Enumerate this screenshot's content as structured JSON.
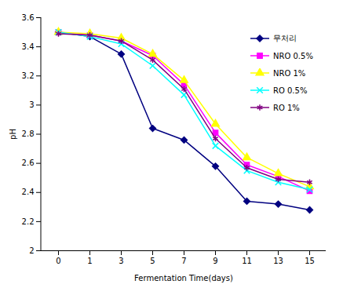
{
  "chart_data": {
    "type": "line",
    "xlabel": "Fermentation Time(days)",
    "ylabel": "pH",
    "categories": [
      0,
      1,
      3,
      5,
      7,
      9,
      11,
      13,
      15
    ],
    "ylim": [
      2,
      3.6
    ],
    "yticks": [
      2,
      2.2,
      2.4,
      2.6,
      2.8,
      3,
      3.2,
      3.4,
      3.6
    ],
    "grid": false,
    "legend": "right",
    "series": [
      {
        "name": "무처리",
        "color": "#000080",
        "marker": "diamond",
        "values": [
          3.5,
          3.47,
          3.35,
          2.84,
          2.76,
          2.58,
          2.34,
          2.32,
          2.28
        ]
      },
      {
        "name": "NRO 0.5%",
        "color": "#ff00ff",
        "marker": "square",
        "values": [
          3.5,
          3.48,
          3.44,
          3.34,
          3.14,
          2.81,
          2.59,
          2.51,
          2.41
        ]
      },
      {
        "name": "NRO 1%",
        "color": "#ffff00",
        "marker": "triangle",
        "values": [
          3.5,
          3.49,
          3.46,
          3.35,
          3.17,
          2.87,
          2.64,
          2.53,
          2.44
        ]
      },
      {
        "name": "RO 0.5%",
        "color": "#00ffff",
        "marker": "times",
        "values": [
          3.5,
          3.47,
          3.42,
          3.27,
          3.07,
          2.72,
          2.55,
          2.47,
          2.42
        ]
      },
      {
        "name": "RO 1%",
        "color": "#800080",
        "marker": "asterisk",
        "values": [
          3.49,
          3.48,
          3.44,
          3.31,
          3.11,
          2.77,
          2.57,
          2.49,
          2.47
        ]
      }
    ]
  }
}
